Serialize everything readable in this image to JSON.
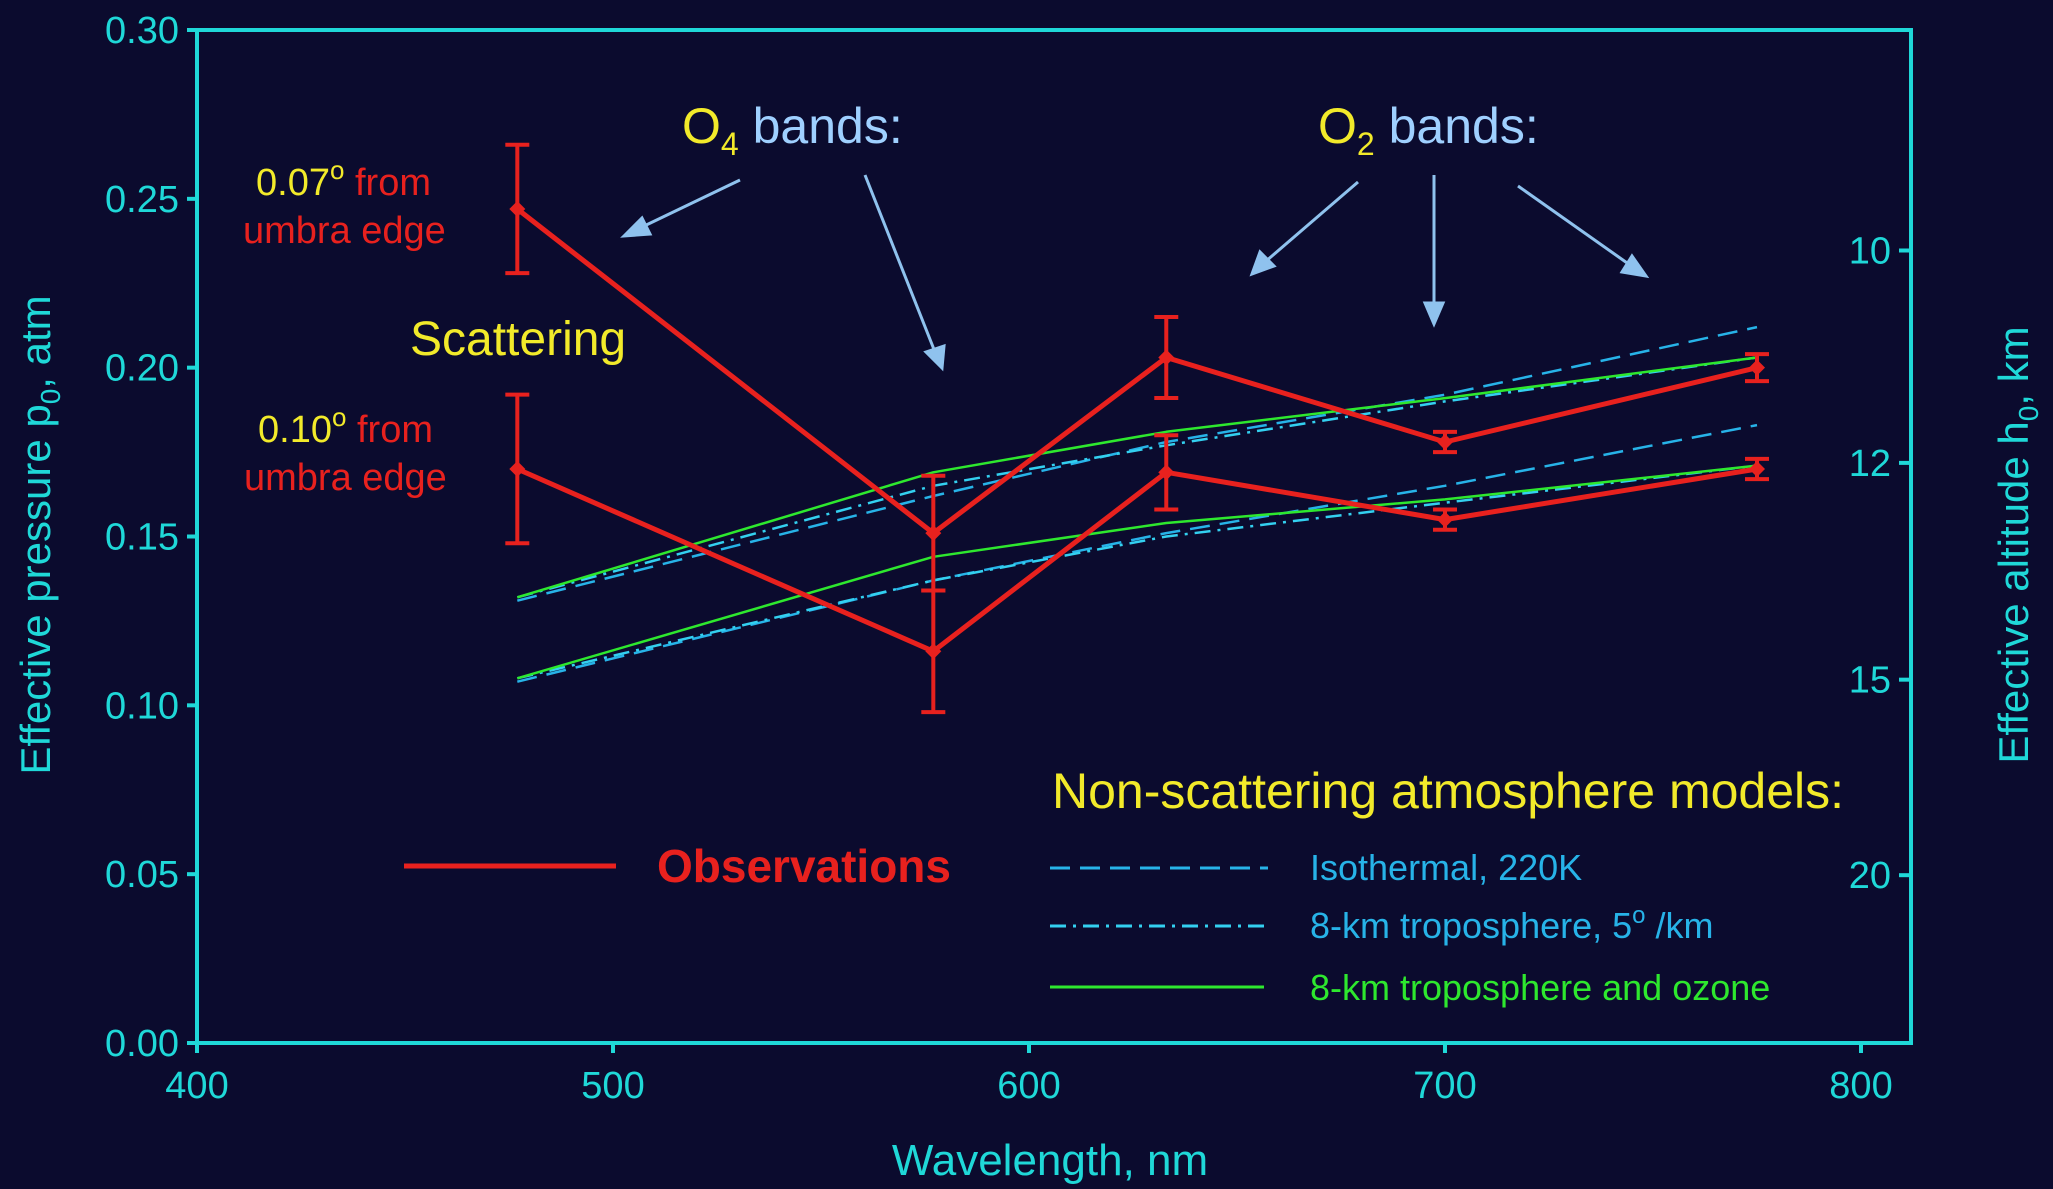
{
  "colors": {
    "background": "#0b0b2e",
    "axis": "#1fd8d8",
    "observations": "#e8211e",
    "isothermal": "#27b3e8",
    "troposphere": "#33d0f0",
    "ozone": "#2ee82e",
    "yellow": "#f2ea2a",
    "band_text": "#9fd0ff",
    "arrow": "#8fc2ee"
  },
  "chart_data": {
    "type": "line",
    "xlabel": "Wavelength, nm",
    "ylabel_main": "Effective pressure p",
    "ylabel_sub": "0",
    "ylabel_unit": ", atm",
    "y2label_main": "Effective altitude h",
    "y2label_sub": "0",
    "y2label_unit": ", km",
    "xlim": [
      400,
      810
    ],
    "ylim": [
      0,
      0.3
    ],
    "xticks": [
      400,
      500,
      600,
      700,
      800
    ],
    "xtick_labels": [
      "400",
      "500",
      "600",
      "700",
      "800"
    ],
    "yticks": [
      0,
      0.05,
      0.1,
      0.15,
      0.2,
      0.25,
      0.3
    ],
    "ytick_labels": [
      "0.00",
      "0.05",
      "0.10",
      "0.15",
      "0.20",
      "0.25",
      "0.30"
    ],
    "y2ticks": [
      {
        "label": "10",
        "p": 0.2347
      },
      {
        "label": "12",
        "p": 0.1718
      },
      {
        "label": "15",
        "p": 0.1076
      },
      {
        "label": "20",
        "p": 0.0497
      }
    ],
    "series": [
      {
        "name": "Observations",
        "style": "observations",
        "x": [
          477,
          577,
          633,
          700,
          775
        ],
        "y": [
          0.247,
          0.151,
          0.203,
          0.178,
          0.2
        ],
        "err": [
          0.019,
          0.017,
          0.012,
          0.003,
          0.004
        ]
      },
      {
        "name": "Observations",
        "style": "observations",
        "x": [
          477,
          577,
          633,
          700,
          775
        ],
        "y": [
          0.17,
          0.116,
          0.169,
          0.155,
          0.17
        ],
        "err": [
          0.022,
          0.018,
          0.011,
          0.003,
          0.003
        ]
      },
      {
        "name": "Isothermal, 220K",
        "style": "isothermal",
        "x": [
          477,
          577,
          633,
          700,
          775
        ],
        "y": [
          0.131,
          0.162,
          0.178,
          0.192,
          0.212
        ]
      },
      {
        "name": "Isothermal, 220K",
        "style": "isothermal",
        "x": [
          477,
          577,
          633,
          700,
          775
        ],
        "y": [
          0.107,
          0.137,
          0.151,
          0.165,
          0.183
        ]
      },
      {
        "name": "8-km troposphere, 5° /km",
        "style": "troposphere",
        "x": [
          477,
          577,
          633,
          700,
          775
        ],
        "y": [
          0.132,
          0.165,
          0.177,
          0.19,
          0.203
        ]
      },
      {
        "name": "8-km troposphere, 5° /km",
        "style": "troposphere",
        "x": [
          477,
          577,
          633,
          700,
          775
        ],
        "y": [
          0.108,
          0.137,
          0.15,
          0.16,
          0.171
        ]
      },
      {
        "name": "8-km troposphere and ozone",
        "style": "ozone",
        "x": [
          477,
          577,
          633,
          700,
          775
        ],
        "y": [
          0.132,
          0.169,
          0.181,
          0.191,
          0.203
        ]
      },
      {
        "name": "8-km troposphere and ozone",
        "style": "ozone",
        "x": [
          477,
          577,
          633,
          700,
          775
        ],
        "y": [
          0.108,
          0.144,
          0.154,
          0.161,
          0.171
        ]
      }
    ],
    "legend": {
      "title": "Non-scattering atmosphere models:",
      "observations": "Observations",
      "isothermal": "Isothermal, 220K",
      "troposphere_pre": "8-km troposphere, 5",
      "troposphere_sup": "o",
      "troposphere_post": " /km",
      "ozone": "8-km troposphere and ozone"
    },
    "annotations": {
      "o4_pre": "O",
      "o4_sub": "4",
      "o4_post": " bands:",
      "o2_pre": "O",
      "o2_sub": "2",
      "o2_post": " bands:",
      "scattering": "Scattering",
      "upper_deg": "0.07",
      "upper_sup": "o",
      "upper_from": " from",
      "upper_line2": "umbra edge",
      "lower_deg": "0.10",
      "lower_sup": "o",
      "lower_from": " from",
      "lower_line2": "umbra edge"
    }
  }
}
